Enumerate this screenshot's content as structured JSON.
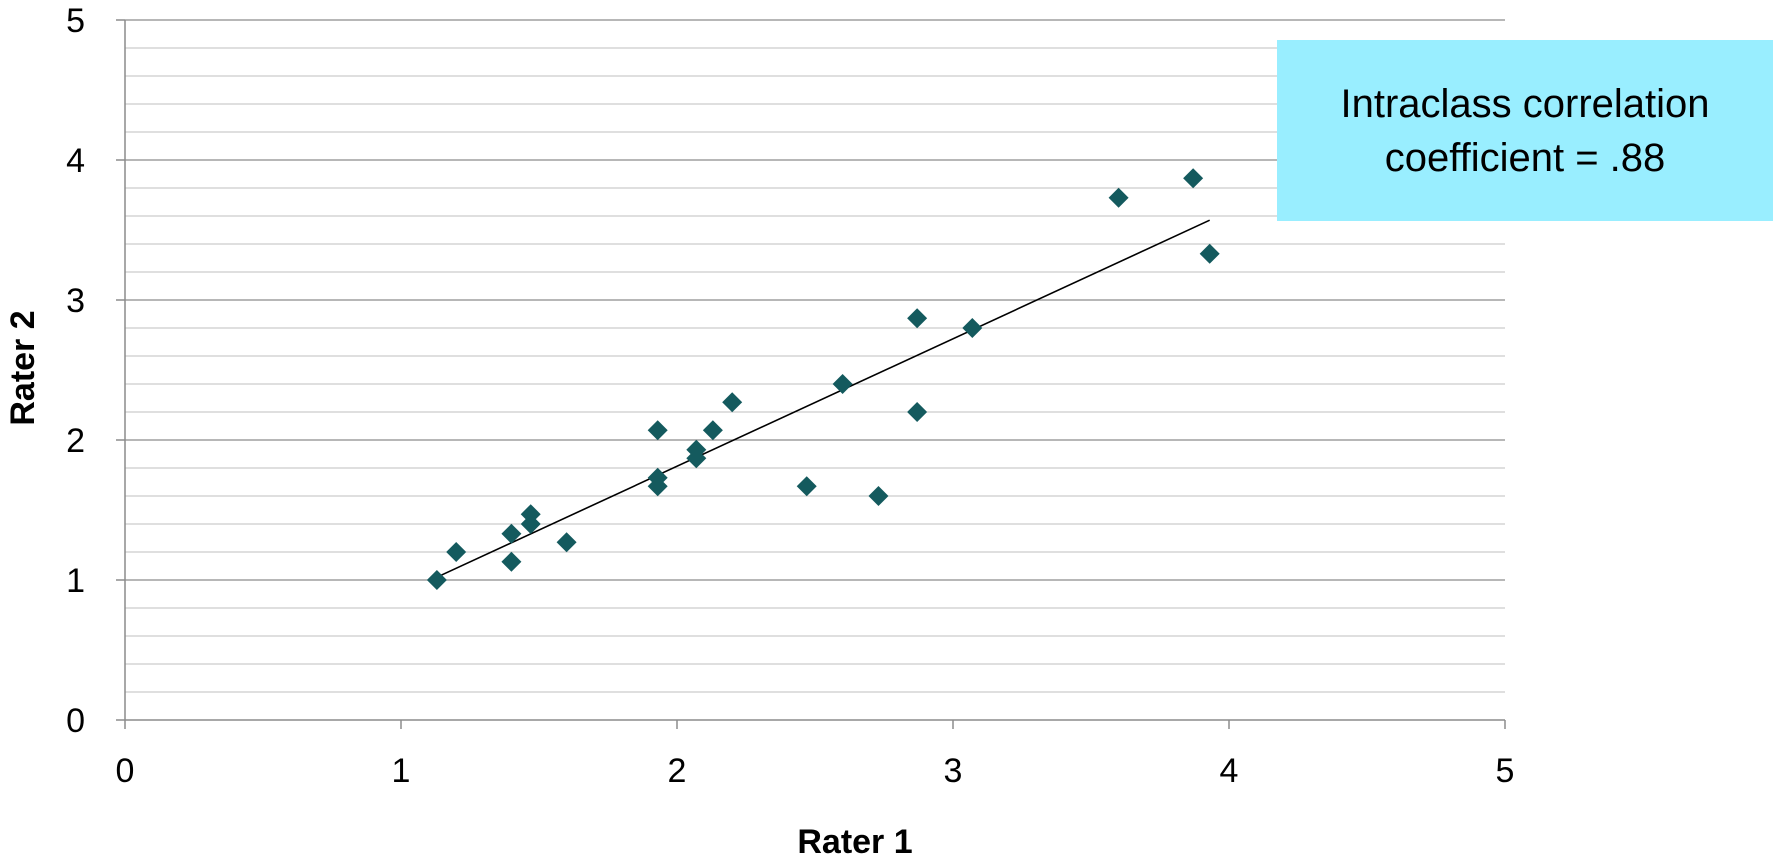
{
  "chart_data": {
    "type": "scatter",
    "title": "",
    "xlabel": "Rater 1",
    "ylabel": "Rater 2",
    "xlim": [
      0,
      5
    ],
    "ylim": [
      0,
      5
    ],
    "x_ticks": [
      "0",
      "1",
      "2",
      "3",
      "4",
      "5"
    ],
    "y_ticks": [
      "0",
      "1",
      "2",
      "3",
      "4",
      "5"
    ],
    "grid": "horizontal major and minor lines",
    "marker": "diamond",
    "marker_color": "#145a5e",
    "series": [
      {
        "points": [
          [
            1.13,
            1.0
          ],
          [
            1.2,
            1.2
          ],
          [
            1.4,
            1.33
          ],
          [
            1.4,
            1.13
          ],
          [
            1.47,
            1.47
          ],
          [
            1.47,
            1.4
          ],
          [
            1.6,
            1.27
          ],
          [
            1.93,
            2.07
          ],
          [
            1.93,
            1.73
          ],
          [
            1.93,
            1.67
          ],
          [
            2.07,
            1.93
          ],
          [
            2.07,
            1.87
          ],
          [
            2.13,
            2.07
          ],
          [
            2.2,
            2.27
          ],
          [
            2.47,
            1.67
          ],
          [
            2.6,
            2.4
          ],
          [
            2.73,
            1.6
          ],
          [
            2.87,
            2.87
          ],
          [
            2.87,
            2.2
          ],
          [
            3.07,
            2.8
          ],
          [
            3.6,
            3.73
          ],
          [
            3.87,
            3.87
          ],
          [
            3.93,
            3.33
          ]
        ]
      }
    ],
    "trendline": {
      "x": [
        1.13,
        3.93
      ],
      "y": [
        1.02,
        3.57
      ]
    },
    "annotation": [
      "Intraclass correlation",
      "coefficient = .88"
    ]
  }
}
